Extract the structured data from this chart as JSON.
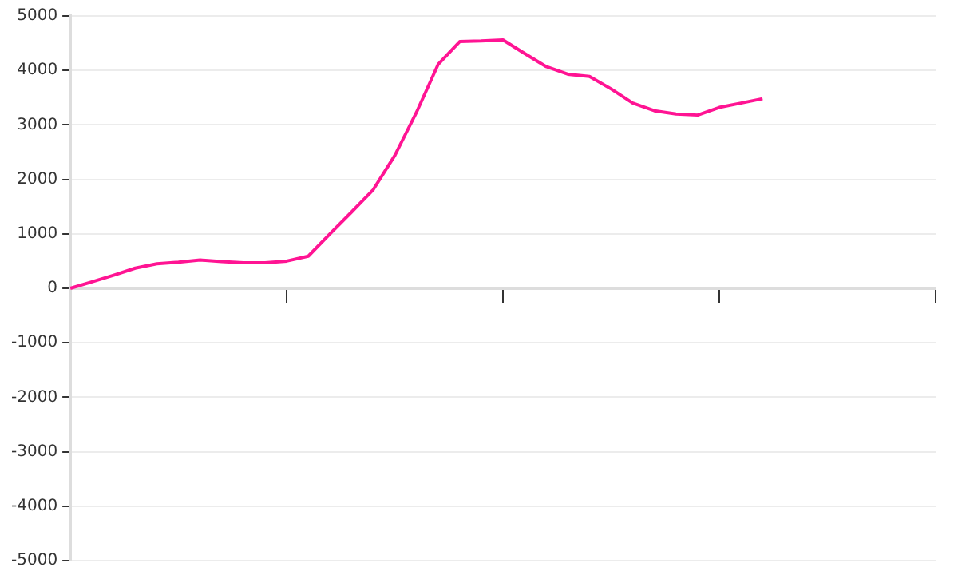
{
  "chart_data": {
    "type": "line",
    "categories": [
      null,
      null,
      null,
      null,
      null,
      null,
      null,
      null,
      null,
      null,
      null,
      null,
      null,
      null,
      null,
      null,
      null,
      null,
      null,
      null,
      null,
      null,
      null,
      null,
      null,
      null,
      null,
      null,
      null,
      null,
      null,
      null,
      null,
      null,
      null,
      null,
      null,
      null,
      null,
      null,
      null
    ],
    "series": [
      {
        "color": "#ff1493",
        "values": [
          0,
          120,
          240,
          370,
          450,
          480,
          520,
          490,
          470,
          470,
          500,
          590,
          1000,
          1400,
          1810,
          2440,
          3230,
          4110,
          4530,
          4540,
          4560,
          4310,
          4070,
          3930,
          3890,
          3660,
          3400,
          3260,
          3200,
          3180,
          3320,
          3400,
          3480,
          null,
          null,
          null,
          null,
          null,
          null,
          null,
          null
        ]
      }
    ],
    "ylim": [
      -5000,
      5000
    ],
    "yticks": [
      -5000,
      -4000,
      -3000,
      -2000,
      -1000,
      0,
      1000,
      2000,
      3000,
      4000,
      5000
    ],
    "grid": "y",
    "marker": "none",
    "line_style": "solid",
    "tick_labels": "y",
    "legend": false
  }
}
